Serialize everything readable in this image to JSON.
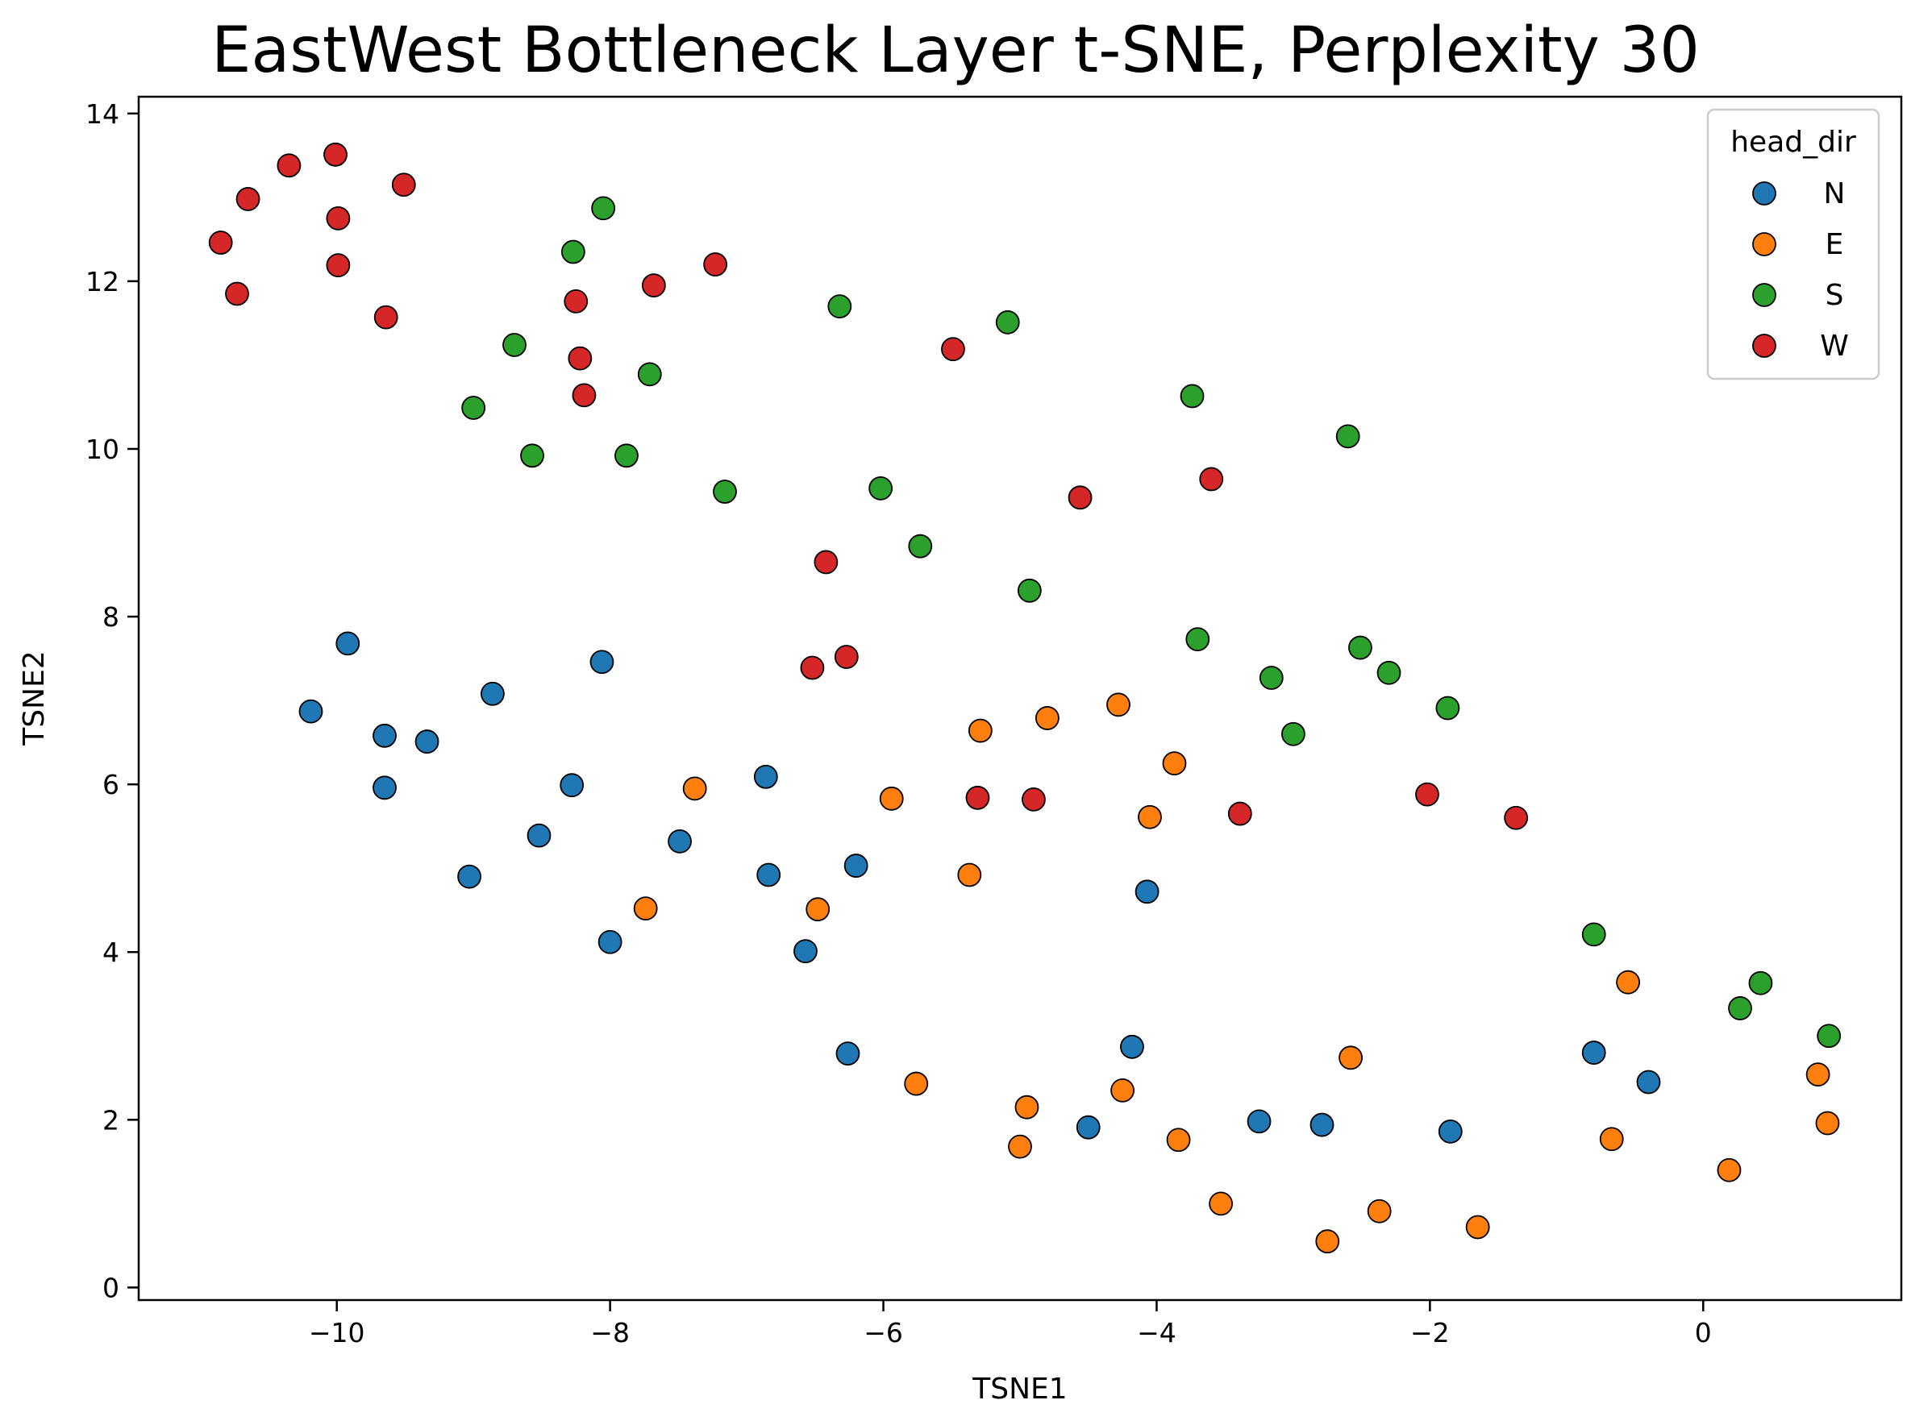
{
  "chart_data": {
    "type": "scatter",
    "title": "EastWest Bottleneck Layer t-SNE, Perplexity 30",
    "xlabel": "TSNE1",
    "ylabel": "TSNE2",
    "xlim": [
      -11.45,
      1.45
    ],
    "ylim": [
      -0.15,
      14.2
    ],
    "xticks": [
      -10,
      -8,
      -6,
      -4,
      -2,
      0
    ],
    "xtick_labels": [
      "−10",
      "−8",
      "−6",
      "−4",
      "−2",
      "0"
    ],
    "yticks": [
      0,
      2,
      4,
      6,
      8,
      10,
      12,
      14
    ],
    "ytick_labels": [
      "0",
      "2",
      "4",
      "6",
      "8",
      "10",
      "12",
      "14"
    ],
    "grid": false,
    "legend": {
      "title": "head_dir",
      "placement": "top-right"
    },
    "series": [
      {
        "name": "N",
        "color": "#1f77b4",
        "points": [
          [
            -9.92,
            7.68
          ],
          [
            -10.19,
            6.87
          ],
          [
            -9.65,
            6.58
          ],
          [
            -9.34,
            6.51
          ],
          [
            -9.65,
            5.96
          ],
          [
            -8.86,
            7.08
          ],
          [
            -8.06,
            7.46
          ],
          [
            -8.28,
            5.99
          ],
          [
            -8.52,
            5.39
          ],
          [
            -9.03,
            4.9
          ],
          [
            -7.49,
            5.32
          ],
          [
            -8.0,
            4.12
          ],
          [
            -6.86,
            6.09
          ],
          [
            -6.84,
            4.92
          ],
          [
            -6.2,
            5.03
          ],
          [
            -6.57,
            4.01
          ],
          [
            -6.26,
            2.79
          ],
          [
            -4.07,
            4.72
          ],
          [
            -4.18,
            2.87
          ],
          [
            -4.5,
            1.91
          ],
          [
            -3.25,
            1.98
          ],
          [
            -2.79,
            1.94
          ],
          [
            -1.85,
            1.86
          ],
          [
            -0.8,
            2.8
          ],
          [
            -0.4,
            2.45
          ]
        ]
      },
      {
        "name": "E",
        "color": "#ff7f0e",
        "points": [
          [
            -7.38,
            5.95
          ],
          [
            -7.74,
            4.52
          ],
          [
            -6.48,
            4.51
          ],
          [
            -5.94,
            5.83
          ],
          [
            -5.37,
            4.92
          ],
          [
            -5.29,
            6.64
          ],
          [
            -4.8,
            6.79
          ],
          [
            -4.28,
            6.95
          ],
          [
            -3.87,
            6.25
          ],
          [
            -4.05,
            5.61
          ],
          [
            -5.76,
            2.43
          ],
          [
            -4.95,
            2.15
          ],
          [
            -5.0,
            1.68
          ],
          [
            -4.25,
            2.35
          ],
          [
            -3.84,
            1.76
          ],
          [
            -3.53,
            1.0
          ],
          [
            -2.75,
            0.55
          ],
          [
            -2.37,
            0.91
          ],
          [
            -2.58,
            2.74
          ],
          [
            -1.65,
            0.72
          ],
          [
            -0.55,
            3.64
          ],
          [
            -0.67,
            1.77
          ],
          [
            0.19,
            1.4
          ],
          [
            0.84,
            2.54
          ],
          [
            0.91,
            1.96
          ]
        ]
      },
      {
        "name": "S",
        "color": "#2ca02c",
        "points": [
          [
            -8.05,
            12.87
          ],
          [
            -8.27,
            12.35
          ],
          [
            -8.7,
            11.24
          ],
          [
            -9.0,
            10.49
          ],
          [
            -8.57,
            9.92
          ],
          [
            -7.71,
            10.89
          ],
          [
            -7.88,
            9.92
          ],
          [
            -7.16,
            9.49
          ],
          [
            -6.32,
            11.7
          ],
          [
            -5.09,
            11.51
          ],
          [
            -6.02,
            9.53
          ],
          [
            -5.73,
            8.84
          ],
          [
            -4.93,
            8.31
          ],
          [
            -3.74,
            10.63
          ],
          [
            -3.7,
            7.73
          ],
          [
            -3.16,
            7.27
          ],
          [
            -2.6,
            10.15
          ],
          [
            -2.51,
            7.63
          ],
          [
            -2.3,
            7.33
          ],
          [
            -1.87,
            6.91
          ],
          [
            -3.0,
            6.6
          ],
          [
            -0.8,
            4.21
          ],
          [
            0.27,
            3.33
          ],
          [
            0.42,
            3.63
          ],
          [
            0.92,
            3.0
          ]
        ]
      },
      {
        "name": "W",
        "color": "#d62728",
        "points": [
          [
            -10.01,
            13.51
          ],
          [
            -10.35,
            13.38
          ],
          [
            -10.65,
            12.98
          ],
          [
            -9.51,
            13.15
          ],
          [
            -9.99,
            12.75
          ],
          [
            -10.85,
            12.46
          ],
          [
            -9.99,
            12.19
          ],
          [
            -10.73,
            11.85
          ],
          [
            -9.64,
            11.57
          ],
          [
            -7.23,
            12.2
          ],
          [
            -7.68,
            11.95
          ],
          [
            -8.25,
            11.76
          ],
          [
            -8.22,
            11.08
          ],
          [
            -8.19,
            10.64
          ],
          [
            -5.49,
            11.19
          ],
          [
            -4.56,
            9.42
          ],
          [
            -3.6,
            9.64
          ],
          [
            -6.42,
            8.65
          ],
          [
            -6.52,
            7.39
          ],
          [
            -6.27,
            7.52
          ],
          [
            -5.31,
            5.84
          ],
          [
            -4.9,
            5.82
          ],
          [
            -3.39,
            5.65
          ],
          [
            -2.02,
            5.88
          ],
          [
            -1.37,
            5.6
          ]
        ]
      }
    ]
  }
}
